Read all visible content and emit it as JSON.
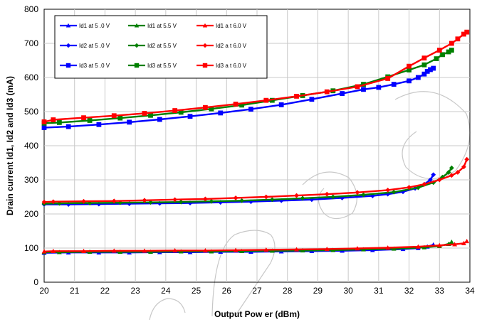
{
  "chart_data": {
    "type": "line",
    "title": "",
    "xlabel": "Output Pow er (dBm)",
    "ylabel": "Drain current Id1, Id2 and Id3 (mA)",
    "xlim": [
      20,
      34
    ],
    "ylim": [
      0,
      800
    ],
    "xticks": [
      "20",
      "21",
      "22",
      "23",
      "24",
      "25",
      "26",
      "27",
      "28",
      "29",
      "30",
      "31",
      "32",
      "33",
      "34"
    ],
    "yticks": [
      "0",
      "100",
      "200",
      "300",
      "400",
      "500",
      "600",
      "700",
      "800"
    ],
    "grid": true,
    "legend_position": "top-left",
    "series": [
      {
        "name": "Id1 at 5 .0 V",
        "color": "#0000ff",
        "marker": "triangle",
        "x": [
          20,
          20.8,
          21.8,
          22.8,
          23.8,
          24.8,
          25.8,
          26.8,
          27.8,
          28.8,
          29.8,
          30.8,
          31.8,
          32.3,
          32.6,
          32.8
        ],
        "y": [
          86,
          87,
          87,
          87,
          88,
          88,
          89,
          89,
          90,
          91,
          92,
          94,
          97,
          100,
          104,
          110
        ]
      },
      {
        "name": "Id1 at 5.5 V",
        "color": "#008000",
        "marker": "triangle",
        "x": [
          20,
          20.5,
          21.5,
          22.5,
          23.5,
          24.5,
          25.5,
          26.5,
          27.5,
          28.5,
          29.5,
          30.5,
          31.5,
          32.5,
          33.0,
          33.3,
          33.4
        ],
        "y": [
          88,
          88,
          89,
          89,
          89,
          90,
          90,
          91,
          92,
          93,
          94,
          96,
          98,
          102,
          106,
          112,
          118
        ]
      },
      {
        "name": "Id1 a t 6.0 V",
        "color": "#ff0000",
        "marker": "triangle",
        "x": [
          20,
          20.3,
          21.3,
          22.3,
          23.3,
          24.3,
          25.3,
          26.3,
          27.3,
          28.3,
          29.3,
          30.3,
          31.3,
          32.3,
          33.0,
          33.5,
          33.8,
          33.9
        ],
        "y": [
          90,
          91,
          91,
          92,
          92,
          93,
          93,
          94,
          95,
          96,
          97,
          99,
          101,
          104,
          108,
          111,
          114,
          120
        ]
      },
      {
        "name": "Id2 at 5 .0 V",
        "color": "#0000ff",
        "marker": "diamond",
        "x": [
          20,
          20.8,
          21.8,
          22.8,
          23.8,
          24.8,
          25.8,
          26.8,
          27.8,
          28.8,
          29.8,
          30.8,
          31.3,
          31.8,
          32.2,
          32.5,
          32.7,
          32.8
        ],
        "y": [
          228,
          228,
          229,
          230,
          231,
          232,
          234,
          236,
          239,
          242,
          247,
          253,
          258,
          265,
          275,
          287,
          300,
          315
        ]
      },
      {
        "name": "Id2 at 5.5 V",
        "color": "#008000",
        "marker": "diamond",
        "x": [
          20,
          20.5,
          21.5,
          22.5,
          23.5,
          24.5,
          25.5,
          26.5,
          27.5,
          28.5,
          29.5,
          30.5,
          31.5,
          32.3,
          32.8,
          33.1,
          33.3,
          33.4
        ],
        "y": [
          230,
          231,
          232,
          233,
          234,
          235,
          237,
          239,
          242,
          246,
          250,
          256,
          264,
          277,
          292,
          308,
          322,
          335
        ]
      },
      {
        "name": "Id2 a t 6.0 V",
        "color": "#ff0000",
        "marker": "diamond",
        "x": [
          20,
          20.3,
          21.3,
          22.3,
          23.3,
          24.3,
          25.3,
          26.3,
          27.3,
          28.3,
          29.3,
          30.3,
          31.3,
          32.0,
          32.5,
          33.0,
          33.4,
          33.6,
          33.8,
          33.9
        ],
        "y": [
          235,
          236,
          237,
          238,
          240,
          242,
          244,
          247,
          250,
          254,
          258,
          263,
          270,
          278,
          287,
          300,
          313,
          322,
          338,
          360
        ]
      },
      {
        "name": "Id3 at 5 .0 V",
        "color": "#0000ff",
        "marker": "square",
        "x": [
          20,
          20.8,
          21.8,
          22.8,
          23.8,
          24.8,
          25.8,
          26.8,
          27.8,
          28.8,
          29.8,
          30.5,
          31.0,
          31.5,
          32.0,
          32.3,
          32.5,
          32.6,
          32.7,
          32.8
        ],
        "y": [
          453,
          456,
          462,
          469,
          477,
          486,
          496,
          507,
          520,
          536,
          553,
          565,
          571,
          580,
          590,
          600,
          610,
          618,
          623,
          627
        ]
      },
      {
        "name": "Id3 at 5.5 V",
        "color": "#008000",
        "marker": "square",
        "x": [
          20,
          20.5,
          21.5,
          22.5,
          23.5,
          24.5,
          25.5,
          26.5,
          27.5,
          28.5,
          29.5,
          30.5,
          31.3,
          32.0,
          32.5,
          32.9,
          33.1,
          33.3,
          33.4
        ],
        "y": [
          466,
          468,
          474,
          481,
          489,
          498,
          508,
          519,
          533,
          547,
          561,
          580,
          602,
          622,
          637,
          655,
          667,
          675,
          680
        ]
      },
      {
        "name": "Id3 a t 6.0 V",
        "color": "#ff0000",
        "marker": "square",
        "x": [
          20,
          20.3,
          21.3,
          22.3,
          23.3,
          24.3,
          25.3,
          26.3,
          27.3,
          28.3,
          29.3,
          30.3,
          31.3,
          32.0,
          32.5,
          33.0,
          33.4,
          33.6,
          33.8,
          33.9
        ],
        "y": [
          470,
          476,
          482,
          488,
          495,
          503,
          512,
          522,
          533,
          545,
          558,
          573,
          597,
          633,
          657,
          680,
          700,
          713,
          727,
          733
        ]
      }
    ]
  }
}
